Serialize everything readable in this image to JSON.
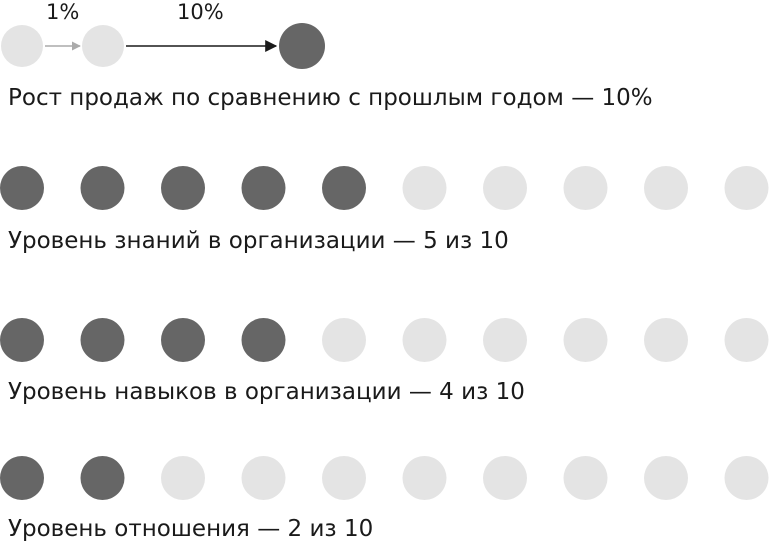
{
  "colors": {
    "filled": "#666666",
    "empty": "#e4e4e4",
    "arrow_small": "#aaaaaa",
    "arrow_big": "#1a1a1a"
  },
  "growth": {
    "label_small": "1%",
    "label_big": "10%",
    "caption": "Рост продаж по сравнению с прошлым годом — 10%"
  },
  "rows": [
    {
      "caption": "Уровень знаний в организации — 5 из 10",
      "filled": 5,
      "total": 10
    },
    {
      "caption": "Уровень навыков в организации — 4 из 10",
      "filled": 4,
      "total": 10
    },
    {
      "caption": "Уровень отношения — 2 из 10",
      "filled": 2,
      "total": 10
    }
  ]
}
